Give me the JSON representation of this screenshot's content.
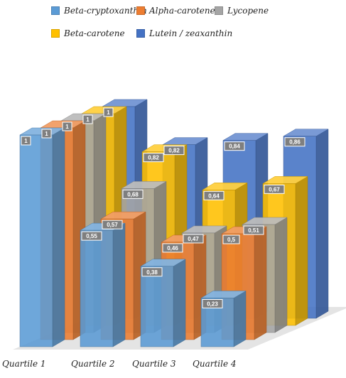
{
  "chart_data": {
    "type": "bar",
    "style": "3d-clustered-depth",
    "categories": [
      "Quartile 1",
      "Quartile 2",
      "Quartile 3",
      "Quartile 4"
    ],
    "series": [
      {
        "name": "Beta-cryptoxanthin",
        "color": "#5b9bd5",
        "values": [
          1,
          0.55,
          0.38,
          0.23
        ],
        "labels": [
          "1",
          "0,55",
          "0,38",
          "0,23"
        ]
      },
      {
        "name": "Alpha-carotene",
        "color": "#ed7d31",
        "values": [
          1,
          0.57,
          0.46,
          0.5
        ],
        "labels": [
          "1",
          "0,57",
          "0,46",
          "0,5"
        ]
      },
      {
        "name": "Lycopene",
        "color": "#a5a5a5",
        "values": [
          1,
          0.68,
          0.47,
          0.51
        ],
        "labels": [
          "1",
          "0,68",
          "0,47",
          "0,51"
        ]
      },
      {
        "name": "Beta-carotene",
        "color": "#ffc000",
        "values": [
          1,
          0.82,
          0.64,
          0.67
        ],
        "labels": [
          "1",
          "0,82",
          "0,64",
          "0,67"
        ]
      },
      {
        "name": "Lutein / zeaxanthin",
        "color": "#4472c4",
        "values": [
          1,
          0.82,
          0.84,
          0.86
        ],
        "labels": [
          "1",
          "0,82",
          "0,84",
          "0,86"
        ]
      }
    ],
    "ylim": [
      0,
      1
    ],
    "legend_position": "top",
    "grid": false,
    "data_labels": true
  }
}
